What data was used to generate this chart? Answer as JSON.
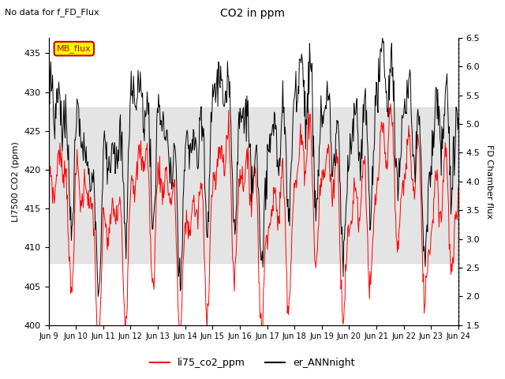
{
  "title": "CO2 in ppm",
  "subtitle": "No data for f_FD_Flux",
  "ylabel_left": "LI7500 CO2 (ppm)",
  "ylabel_right": "FD Chamber flux",
  "ylim_left": [
    400,
    437
  ],
  "ylim_right": [
    1.5,
    6.5
  ],
  "yticks_left": [
    400,
    405,
    410,
    415,
    420,
    425,
    430,
    435
  ],
  "yticks_right": [
    1.5,
    2.0,
    2.5,
    3.0,
    3.5,
    4.0,
    4.5,
    5.0,
    5.5,
    6.0,
    6.5
  ],
  "xlim": [
    0,
    15
  ],
  "xtick_positions": [
    0,
    1,
    2,
    3,
    4,
    5,
    6,
    7,
    8,
    9,
    10,
    11,
    12,
    13,
    14,
    15
  ],
  "xtick_labels": [
    "Jun 9",
    "Jun 10",
    "Jun 11",
    "Jun 12",
    "Jun 13",
    "Jun 14",
    "Jun 15",
    "Jun 16",
    "Jun 17",
    "Jun 18",
    "Jun 19",
    "Jun 20",
    "Jun 21",
    "Jun 22",
    "Jun 23",
    "Jun 24"
  ],
  "legend_entries": [
    "li75_co2_ppm",
    "er_ANNnight"
  ],
  "line_color_red": "#ff0000",
  "line_color_black": "#000000",
  "gray_band_ymin": 408,
  "gray_band_ymax": 428,
  "mb_flux_box_color": "#ffff00",
  "mb_flux_box_edge": "#cc0000",
  "mb_flux_text": "MB_flux",
  "mb_flux_text_color": "#cc0000",
  "figsize": [
    6.4,
    4.8
  ],
  "dpi": 100
}
